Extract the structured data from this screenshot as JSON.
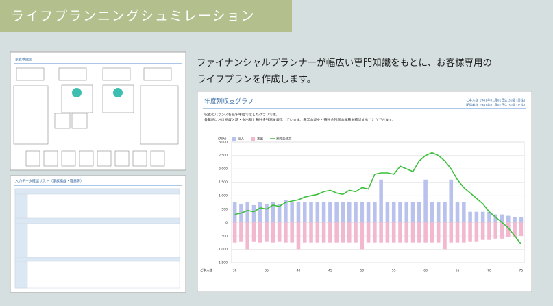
{
  "banner": {
    "title": "ライフプランニングシュミレーション"
  },
  "intro": {
    "lines": [
      "ファイナンシャルプランナーが幅広い専門知識をもとに、お客様専用の",
      "ライフプランを作成します。"
    ]
  },
  "thumbnails": [
    {
      "title": "家族構成図"
    },
    {
      "title": "入力データ確認リスト（家族構成・職業等）"
    }
  ],
  "chart_data": {
    "type": "bar",
    "title": "年度別収支グラフ",
    "header_lines": [
      "ご本人様 1981年01月01日生 30歳 [男性]",
      "配偶者様 1981年01月01日生 30歳 [女性]"
    ],
    "description": [
      "収支のバランスを経年単位で示したグラフです。",
      "各年齢における収入額・支出額と預貯金残高を表示しています。赤字の収支と預貯金残高の推移を確認することができます。"
    ],
    "unit_label": "(万円)",
    "age_row_label": "ご本人様",
    "categories": [
      "30",
      null,
      null,
      null,
      null,
      "35",
      null,
      null,
      null,
      null,
      "40",
      null,
      null,
      null,
      null,
      "45",
      null,
      null,
      null,
      null,
      "50",
      null,
      null,
      null,
      null,
      "55",
      null,
      null,
      null,
      null,
      "60",
      null,
      null,
      null,
      null,
      "65",
      null,
      null,
      null,
      null,
      "70",
      null,
      null,
      null,
      null,
      "75"
    ],
    "ylim": [
      -1500,
      3000
    ],
    "yticks": [
      {
        "value": 3000,
        "label": "3,000"
      },
      {
        "value": 2500,
        "label": "2,500"
      },
      {
        "value": 2000,
        "label": "2,000"
      },
      {
        "value": 1500,
        "label": "1,500"
      },
      {
        "value": 1000,
        "label": "1,000"
      },
      500,
      0,
      {
        "value": -500,
        "label": "500"
      },
      {
        "value": -1000,
        "label": "1,000"
      },
      {
        "value": -1500,
        "label": "1,500"
      }
    ],
    "grid": true,
    "series": [
      {
        "name": "収入",
        "color": "#b9c2ec",
        "kind": "bar",
        "values": [
          750,
          700,
          750,
          650,
          750,
          700,
          750,
          700,
          850,
          750,
          750,
          750,
          750,
          750,
          750,
          750,
          750,
          750,
          750,
          750,
          750,
          750,
          750,
          1600,
          750,
          750,
          750,
          750,
          750,
          750,
          1600,
          750,
          750,
          750,
          1600,
          750,
          750,
          400,
          400,
          400,
          400,
          300,
          300,
          250,
          200,
          200
        ]
      },
      {
        "name": "支出",
        "color": "#f2b8cf",
        "kind": "bar",
        "values": [
          -750,
          -700,
          -1000,
          -700,
          -750,
          -700,
          -750,
          -700,
          -750,
          -750,
          -1000,
          -750,
          -750,
          -750,
          -750,
          -750,
          -750,
          -750,
          -750,
          -750,
          -1000,
          -750,
          -750,
          -750,
          -750,
          -750,
          -750,
          -750,
          -750,
          -750,
          -750,
          -750,
          -750,
          -1000,
          -750,
          -750,
          -750,
          -700,
          -700,
          -650,
          -650,
          -600,
          -600,
          -550,
          -550,
          -500
        ]
      },
      {
        "name": "預貯金残高",
        "color": "#3cbf3c",
        "kind": "line",
        "values": [
          300,
          350,
          450,
          400,
          550,
          500,
          650,
          600,
          750,
          800,
          850,
          950,
          1000,
          1050,
          1150,
          1200,
          1100,
          1050,
          1200,
          1150,
          1300,
          1250,
          1800,
          1850,
          1850,
          1800,
          2100,
          2000,
          1900,
          2300,
          2500,
          2600,
          2500,
          2300,
          2000,
          1600,
          1300,
          1100,
          900,
          700,
          400,
          200,
          0,
          -200,
          -500,
          -800
        ]
      }
    ]
  }
}
